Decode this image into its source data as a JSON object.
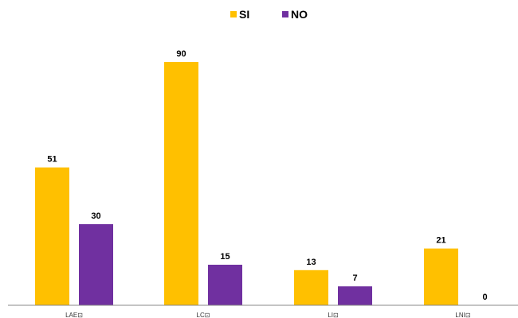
{
  "chart_data": {
    "type": "bar",
    "categories": [
      "LAE⊡",
      "LC⊡",
      "LI⊡",
      "LNI⊡"
    ],
    "series": [
      {
        "name": "SI",
        "values": [
          51,
          90,
          13,
          21
        ],
        "color": "#FFC000"
      },
      {
        "name": "NO",
        "values": [
          30,
          15,
          7,
          0
        ],
        "color": "#7030A0"
      }
    ],
    "title": "",
    "xlabel": "",
    "ylabel": "",
    "ylim": [
      0,
      100
    ],
    "grid": false,
    "legend_position": "top-center",
    "data_labels": true
  }
}
